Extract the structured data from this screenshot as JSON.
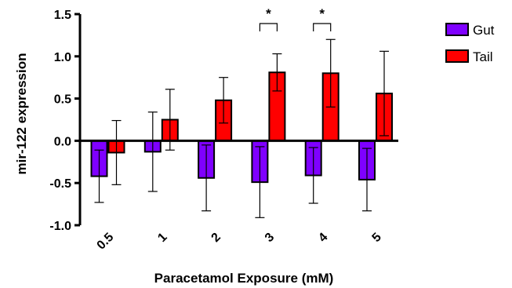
{
  "chart_data": {
    "type": "bar",
    "xlabel": "Paracetamol Exposure (mM)",
    "ylabel": "mir-122 expression",
    "categories": [
      "0.5",
      "1",
      "2",
      "3",
      "4",
      "5"
    ],
    "ylim": [
      -1.0,
      1.5
    ],
    "yticks": [
      "1.5",
      "1.0",
      "0.5",
      "0.0",
      "-0.5",
      "-1.0"
    ],
    "series": [
      {
        "name": "Gut",
        "color": "#7f00ff",
        "values": [
          -0.42,
          -0.13,
          -0.44,
          -0.49,
          -0.41,
          -0.46
        ],
        "error": [
          0.31,
          0.47,
          0.39,
          0.42,
          0.33,
          0.37
        ]
      },
      {
        "name": "Tail",
        "color": "#ff0000",
        "values": [
          -0.14,
          0.25,
          0.48,
          0.81,
          0.8,
          0.56
        ],
        "error": [
          0.38,
          0.36,
          0.27,
          0.22,
          0.4,
          0.5
        ]
      }
    ],
    "significance": [
      {
        "category": "3",
        "label": "*"
      },
      {
        "category": "4",
        "label": "*"
      }
    ],
    "legend_position": "top-right"
  }
}
